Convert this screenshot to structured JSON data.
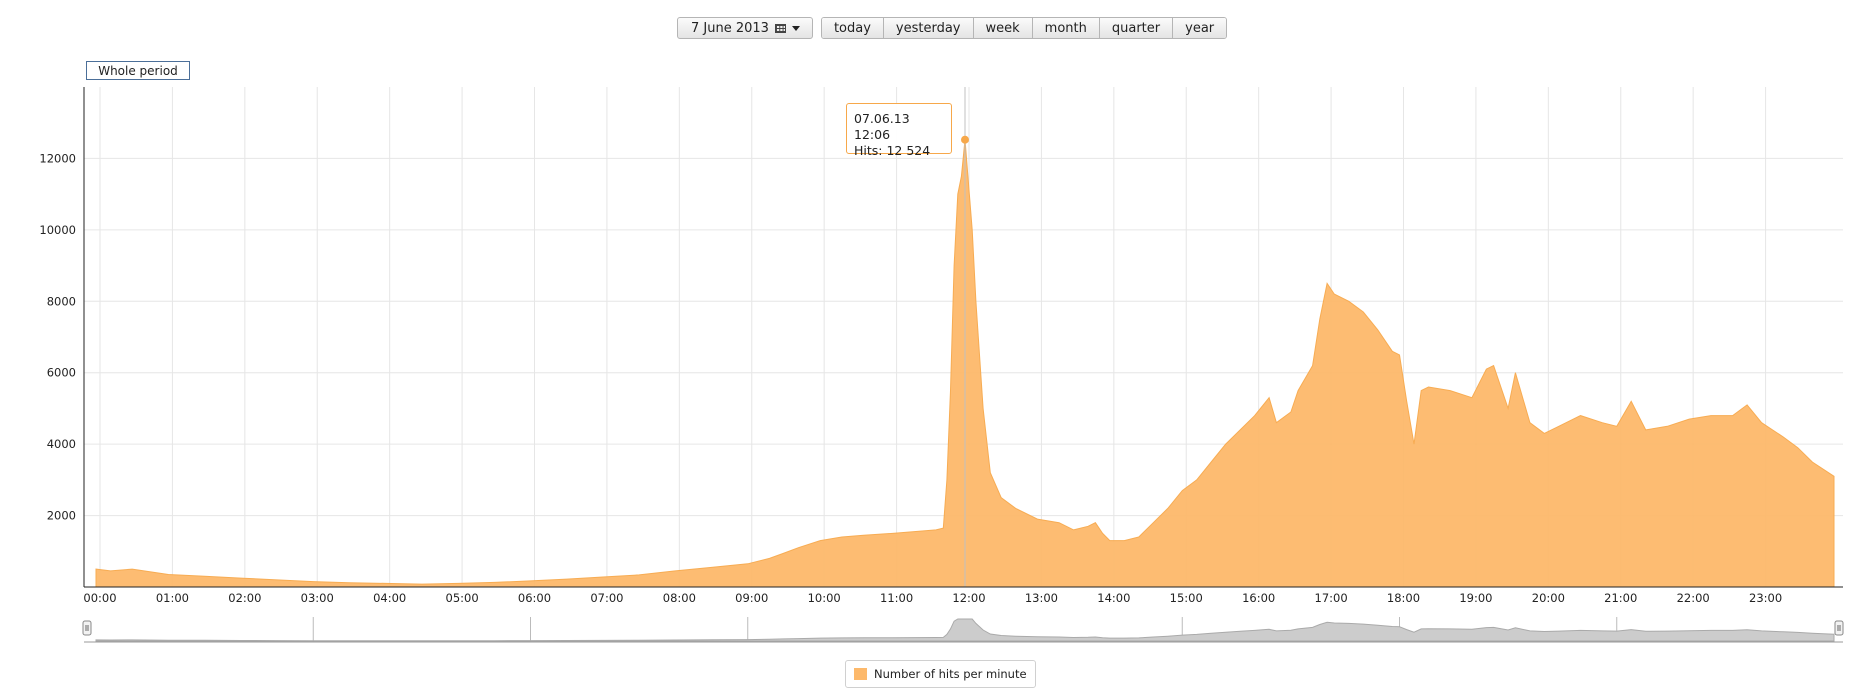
{
  "toolbar": {
    "date_label": "7 June 2013",
    "periods": [
      "today",
      "yesterday",
      "week",
      "month",
      "quarter",
      "year"
    ]
  },
  "range_button": "Whole period",
  "tooltip": {
    "line1": "07.06.13 12:06",
    "line2": "Hits: 12 524"
  },
  "colors": {
    "area_fill": "#fdb96b",
    "area_stroke": "#f7a84a",
    "navigator_fill": "#cccccc",
    "grid": "#e6e6e6"
  },
  "chart_data": {
    "type": "area",
    "title": "",
    "xlabel": "",
    "ylabel": "",
    "x_unit": "hours",
    "xlim": [
      0,
      24
    ],
    "ylim": [
      0,
      14000
    ],
    "yticks": [
      2000,
      4000,
      6000,
      8000,
      10000,
      12000
    ],
    "xtick_labels": [
      "00:00",
      "01:00",
      "02:00",
      "03:00",
      "04:00",
      "05:00",
      "06:00",
      "07:00",
      "08:00",
      "09:00",
      "10:00",
      "11:00",
      "12:00",
      "13:00",
      "14:00",
      "15:00",
      "16:00",
      "17:00",
      "18:00",
      "19:00",
      "20:00",
      "21:00",
      "22:00",
      "23:00"
    ],
    "grid": true,
    "legend_position": "bottom-center",
    "series": [
      {
        "name": "Number of hits per minute",
        "x": [
          0,
          0.2,
          0.5,
          1.0,
          1.5,
          2.0,
          2.5,
          3.0,
          3.5,
          4.0,
          4.5,
          5.0,
          5.5,
          6.0,
          6.5,
          7.0,
          7.5,
          8.0,
          8.5,
          9.0,
          9.3,
          9.5,
          9.7,
          10.0,
          10.3,
          10.6,
          11.0,
          11.3,
          11.6,
          11.7,
          11.75,
          11.8,
          11.85,
          11.9,
          11.95,
          12.0,
          12.1,
          12.15,
          12.25,
          12.35,
          12.5,
          12.7,
          13.0,
          13.3,
          13.5,
          13.7,
          13.8,
          13.9,
          14.0,
          14.2,
          14.4,
          14.6,
          14.8,
          15.0,
          15.2,
          15.4,
          15.6,
          15.8,
          16.0,
          16.2,
          16.3,
          16.5,
          16.6,
          16.8,
          16.9,
          17.0,
          17.1,
          17.3,
          17.5,
          17.7,
          17.9,
          18.0,
          18.1,
          18.2,
          18.3,
          18.4,
          18.7,
          19.0,
          19.2,
          19.3,
          19.5,
          19.6,
          19.8,
          20.0,
          20.2,
          20.5,
          20.8,
          21.0,
          21.2,
          21.4,
          21.7,
          22.0,
          22.3,
          22.6,
          22.8,
          23.0,
          23.3,
          23.5,
          23.7,
          24.0
        ],
        "values": [
          500,
          450,
          500,
          350,
          300,
          250,
          200,
          150,
          120,
          100,
          80,
          100,
          130,
          170,
          220,
          280,
          340,
          450,
          550,
          650,
          800,
          950,
          1100,
          1300,
          1400,
          1450,
          1500,
          1550,
          1600,
          1650,
          3000,
          5500,
          9000,
          11000,
          11500,
          12524,
          10000,
          8000,
          5000,
          3200,
          2500,
          2200,
          1900,
          1800,
          1600,
          1700,
          1800,
          1500,
          1300,
          1300,
          1400,
          1800,
          2200,
          2700,
          3000,
          3500,
          4000,
          4400,
          4800,
          5300,
          4600,
          4900,
          5500,
          6200,
          7500,
          8500,
          8200,
          8000,
          7700,
          7200,
          6600,
          6500,
          5200,
          4000,
          5500,
          5600,
          5500,
          5300,
          6100,
          6200,
          5000,
          6000,
          4600,
          4300,
          4500,
          4800,
          4600,
          4500,
          5200,
          4400,
          4500,
          4700,
          4800,
          4800,
          5100,
          4600,
          4200,
          3900,
          3500,
          3100
        ]
      }
    ]
  }
}
